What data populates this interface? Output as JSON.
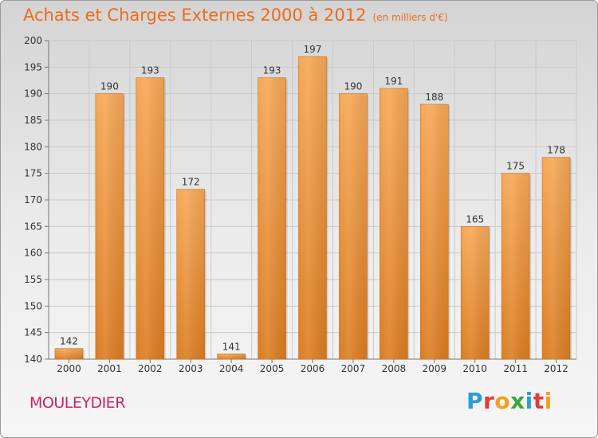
{
  "header": {
    "title": "Achats et Charges Externes 2000 à 2012",
    "unit": "(en milliers d'€)"
  },
  "footer": {
    "commune": "MOULEYDIER",
    "brand": "Proxiti"
  },
  "colors": {
    "title": "#ee6b1b",
    "commune": "#cc2266",
    "bar_top": "#f6a857",
    "bar_bottom": "#db7d22",
    "brand_letters": [
      "#2a9fd6",
      "#e23b3b",
      "#f0a020",
      "#3aa83a",
      "#2a9fd6",
      "#e23b3b",
      "#f0a020"
    ]
  },
  "chart_data": {
    "type": "bar",
    "categories": [
      "2000",
      "2001",
      "2002",
      "2003",
      "2004",
      "2005",
      "2006",
      "2007",
      "2008",
      "2009",
      "2010",
      "2011",
      "2012"
    ],
    "values": [
      142,
      190,
      193,
      172,
      141,
      193,
      197,
      190,
      191,
      188,
      165,
      175,
      178
    ],
    "ylim": [
      140,
      200
    ],
    "yticks": [
      140,
      145,
      150,
      155,
      160,
      165,
      170,
      175,
      180,
      185,
      190,
      195,
      200
    ],
    "grid": true,
    "legend": "none"
  }
}
